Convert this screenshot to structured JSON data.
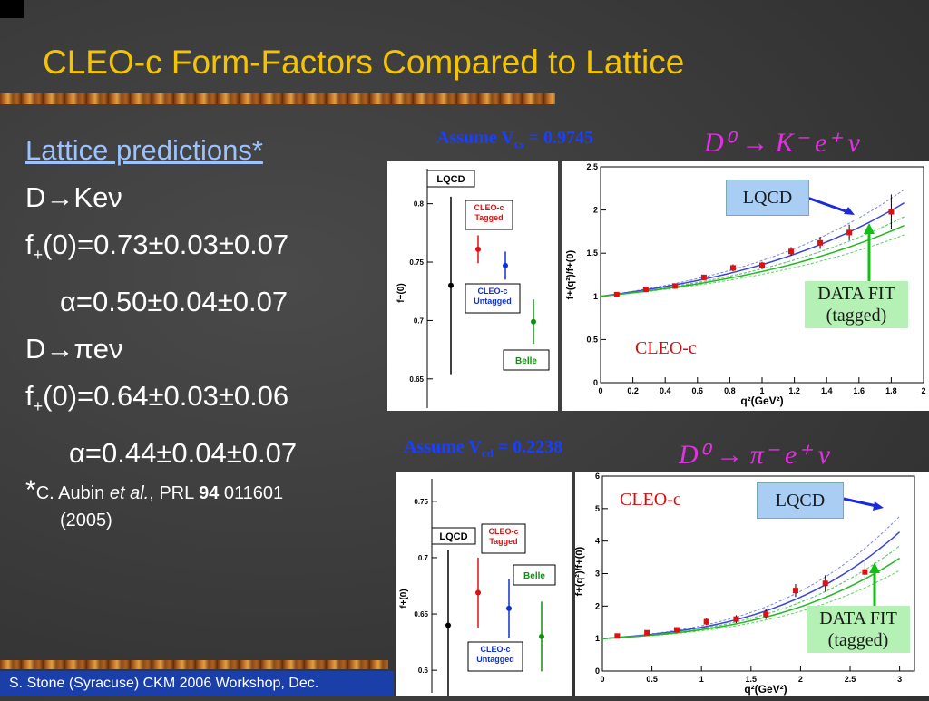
{
  "slide": {
    "title": "CLEO-c Form-Factors Compared to Lattice",
    "footer": "S. Stone (Syracuse) CKM 2006 Workshop, Dec."
  },
  "left": {
    "heading": "Lattice predictions*",
    "line1": "D→Keν",
    "f_prefix": "f",
    "f_sub": "+",
    "line2_rest": "(0)=0.73±0.03±0.07",
    "line3": "α=0.50±0.04±0.07",
    "line4": "D→πeν",
    "line5_rest": "(0)=0.64±0.03±0.06",
    "line6": "α=0.44±0.04±0.07",
    "ref_star": "*",
    "ref_a": "C. Aubin ",
    "ref_etal": "et al.",
    "ref_b": ", PRL ",
    "ref_vol": "94",
    "ref_c": " 011601",
    "ref_year": "(2005)"
  },
  "top_plot": {
    "assume_label": "Assume V",
    "assume_sub": "cs",
    "assume_value": " = 0.9745",
    "decay": "D⁰ → K⁻ e⁺ ν",
    "lqcd_box": "LQCD",
    "fit_box_1": "DATA FIT",
    "fit_box_2": "(tagged)",
    "cleo_label": "CLEO-c"
  },
  "bottom_plot": {
    "assume_label": "Assume V",
    "assume_sub": "cd",
    "assume_value": " = 0.2238",
    "decay": "D⁰ → π⁻ e⁺ ν",
    "lqcd_box": "LQCD",
    "fit_box_1": "DATA FIT",
    "fit_box_2": "(tagged)",
    "cleo_label": "CLEO-c"
  },
  "chart_data": [
    {
      "type": "scatter",
      "ylabel": "f+(0)",
      "ylim": [
        0.625,
        0.83
      ],
      "yticks": [
        0.65,
        0.7,
        0.75,
        0.8
      ],
      "labels": {
        "lqcd": "LQCD",
        "tagged": "CLEO-c Tagged",
        "untagged": "CLEO-c Untagged",
        "belle": "Belle"
      },
      "series": [
        {
          "name": "LQCD",
          "color": "#000000",
          "value": 0.73,
          "err": 0.076
        },
        {
          "name": "CLEO-c Tagged",
          "color": "#e01010",
          "value": 0.761,
          "err": 0.012
        },
        {
          "name": "CLEO-c Untagged",
          "color": "#1030d0",
          "value": 0.747,
          "err": 0.012
        },
        {
          "name": "Belle",
          "color": "#109010",
          "value": 0.699,
          "err": 0.019
        }
      ]
    },
    {
      "type": "scatter",
      "xlabel": "q²(GeV²)",
      "ylabel": "f+(q²)/f+(0)",
      "xlim": [
        0,
        2
      ],
      "ylim": [
        0,
        2.5
      ],
      "xticks": [
        0,
        0.2,
        0.4,
        0.6,
        0.8,
        1,
        1.2,
        1.4,
        1.6,
        1.8,
        2
      ],
      "yticks": [
        0,
        0.5,
        1,
        1.5,
        2,
        2.5
      ],
      "series": [
        {
          "name": "CLEO-c",
          "x": [
            0.1,
            0.28,
            0.46,
            0.64,
            0.82,
            1.0,
            1.18,
            1.36,
            1.54,
            1.8
          ],
          "y": [
            1.02,
            1.08,
            1.12,
            1.22,
            1.33,
            1.36,
            1.52,
            1.62,
            1.74,
            1.98
          ]
        }
      ]
    },
    {
      "type": "scatter",
      "ylabel": "f+(0)",
      "ylim": [
        0.58,
        0.77
      ],
      "yticks": [
        0.6,
        0.65,
        0.7,
        0.75
      ],
      "labels": {
        "lqcd": "LQCD",
        "tagged": "CLEO-c Tagged",
        "untagged": "CLEO-c Untagged",
        "belle": "Belle"
      },
      "series": [
        {
          "name": "LQCD",
          "color": "#000000",
          "value": 0.64,
          "err": 0.067
        },
        {
          "name": "CLEO-c Tagged",
          "color": "#e01010",
          "value": 0.669,
          "err": 0.031
        },
        {
          "name": "CLEO-c Untagged",
          "color": "#1030d0",
          "value": 0.655,
          "err": 0.026
        },
        {
          "name": "Belle",
          "color": "#109010",
          "value": 0.63,
          "err": 0.031
        }
      ]
    },
    {
      "type": "scatter",
      "xlabel": "q²(GeV²)",
      "ylabel": "f+(q²)/f+(0)",
      "xlim": [
        0,
        3.15
      ],
      "ylim": [
        0,
        6
      ],
      "xticks": [
        0,
        0.5,
        1,
        1.5,
        2,
        2.5,
        3
      ],
      "yticks": [
        0,
        1,
        2,
        3,
        4,
        5,
        6
      ],
      "series": [
        {
          "name": "CLEO-c",
          "x": [
            0.15,
            0.45,
            0.75,
            1.05,
            1.35,
            1.65,
            1.95,
            2.25,
            2.65
          ],
          "y": [
            1.08,
            1.18,
            1.27,
            1.52,
            1.6,
            1.75,
            2.48,
            2.7,
            3.05
          ]
        }
      ]
    }
  ]
}
